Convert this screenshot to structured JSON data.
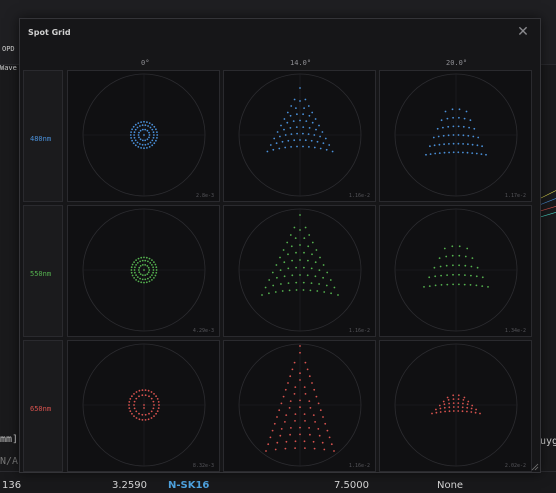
{
  "background": {
    "toolbar_labels": [
      "OPD",
      "Wave"
    ],
    "left_fragments": [
      "mm]",
      "N/A"
    ],
    "right_fragment": "uyg",
    "footer": {
      "col1": "136",
      "col2": "3.2590",
      "glass": "N-SK16",
      "col4": "7.5000",
      "col5": "None"
    }
  },
  "dialog": {
    "title": "Spot Grid",
    "close_icon": "close-icon",
    "fields": [
      "0°",
      "14.0°",
      "20.0°"
    ],
    "wavelengths": [
      {
        "label": "480nm",
        "color": "#4a90d9"
      },
      {
        "label": "550nm",
        "color": "#55b24f"
      },
      {
        "label": "650nm",
        "color": "#d9534f"
      }
    ],
    "scales": [
      [
        "2.8e-3",
        "1.16e-2",
        "1.17e-2"
      ],
      [
        "4.29e-3",
        "1.16e-2",
        "1.34e-2"
      ],
      [
        "8.32e-3",
        "1.16e-2",
        "2.02e-2"
      ]
    ]
  }
}
